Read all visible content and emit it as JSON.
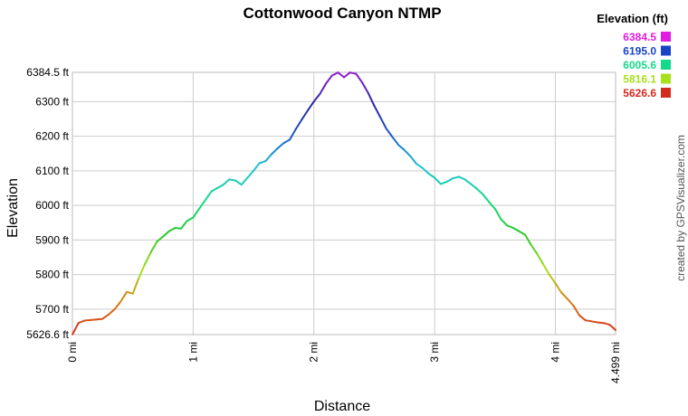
{
  "chart_data": {
    "type": "line",
    "title": "Cottonwood Canyon NTMP",
    "xlabel": "Distance",
    "ylabel": "Elevation",
    "xlim": [
      0,
      4.499
    ],
    "ylim": [
      5626.6,
      6384.5
    ],
    "grid": true,
    "x_ticks": [
      {
        "value": 0,
        "label": "0 mi"
      },
      {
        "value": 1,
        "label": "1 mi"
      },
      {
        "value": 2,
        "label": "2 mi"
      },
      {
        "value": 3,
        "label": "3 mi"
      },
      {
        "value": 4,
        "label": "4 mi"
      },
      {
        "value": 4.499,
        "label": "4.499 mi"
      }
    ],
    "y_ticks": [
      {
        "value": 5626.6,
        "label": "5626.6 ft"
      },
      {
        "value": 5700,
        "label": "5700 ft"
      },
      {
        "value": 5800,
        "label": "5800 ft"
      },
      {
        "value": 5900,
        "label": "5900 ft"
      },
      {
        "value": 6000,
        "label": "6000 ft"
      },
      {
        "value": 6100,
        "label": "6100 ft"
      },
      {
        "value": 6200,
        "label": "6200 ft"
      },
      {
        "value": 6300,
        "label": "6300 ft"
      },
      {
        "value": 6384.5,
        "label": "6384.5 ft"
      }
    ],
    "series": [
      {
        "x": [
          0,
          0.05,
          0.1,
          0.25,
          0.3,
          0.35,
          0.4,
          0.45,
          0.5,
          0.55,
          0.6,
          0.65,
          0.7,
          0.75,
          0.8,
          0.85,
          0.9,
          0.95,
          1.0,
          1.05,
          1.1,
          1.15,
          1.2,
          1.25,
          1.3,
          1.35,
          1.4,
          1.45,
          1.5,
          1.55,
          1.6,
          1.65,
          1.7,
          1.75,
          1.8,
          1.85,
          1.9,
          1.95,
          2.0,
          2.05,
          2.1,
          2.15,
          2.2,
          2.25,
          2.3,
          2.35,
          2.4,
          2.45,
          2.5,
          2.55,
          2.6,
          2.65,
          2.7,
          2.75,
          2.8,
          2.85,
          2.9,
          2.95,
          3.0,
          3.05,
          3.1,
          3.15,
          3.2,
          3.25,
          3.3,
          3.35,
          3.4,
          3.45,
          3.5,
          3.55,
          3.6,
          3.65,
          3.7,
          3.75,
          3.8,
          3.85,
          3.9,
          3.95,
          4.0,
          4.05,
          4.1,
          4.15,
          4.2,
          4.25,
          4.3,
          4.35,
          4.4,
          4.45,
          4.499
        ],
        "y": [
          5627,
          5660,
          5667,
          5672,
          5685,
          5700,
          5722,
          5750,
          5745,
          5790,
          5830,
          5865,
          5895,
          5910,
          5925,
          5935,
          5933,
          5955,
          5965,
          5990,
          6015,
          6040,
          6050,
          6060,
          6075,
          6072,
          6060,
          6080,
          6100,
          6122,
          6128,
          6148,
          6165,
          6180,
          6190,
          6220,
          6248,
          6275,
          6300,
          6322,
          6352,
          6375,
          6384,
          6370,
          6384,
          6380,
          6355,
          6325,
          6288,
          6255,
          6222,
          6198,
          6175,
          6160,
          6142,
          6120,
          6108,
          6092,
          6080,
          6062,
          6068,
          6078,
          6083,
          6075,
          6062,
          6048,
          6032,
          6010,
          5990,
          5960,
          5942,
          5935,
          5925,
          5915,
          5885,
          5860,
          5830,
          5800,
          5775,
          5748,
          5730,
          5710,
          5682,
          5668,
          5665,
          5662,
          5660,
          5655,
          5640
        ]
      }
    ],
    "legend": {
      "title": "Elevation (ft)",
      "placement": "top-right",
      "entries": [
        {
          "label": "6384.5",
          "color": "#e21be2"
        },
        {
          "label": "6195.0",
          "color": "#1a44c8"
        },
        {
          "label": "6005.6",
          "color": "#15d98a"
        },
        {
          "label": "5816.1",
          "color": "#a8e01c"
        },
        {
          "label": "5626.6",
          "color": "#d42a1e"
        }
      ]
    },
    "credit": "created by GPSVisualizer.com"
  }
}
